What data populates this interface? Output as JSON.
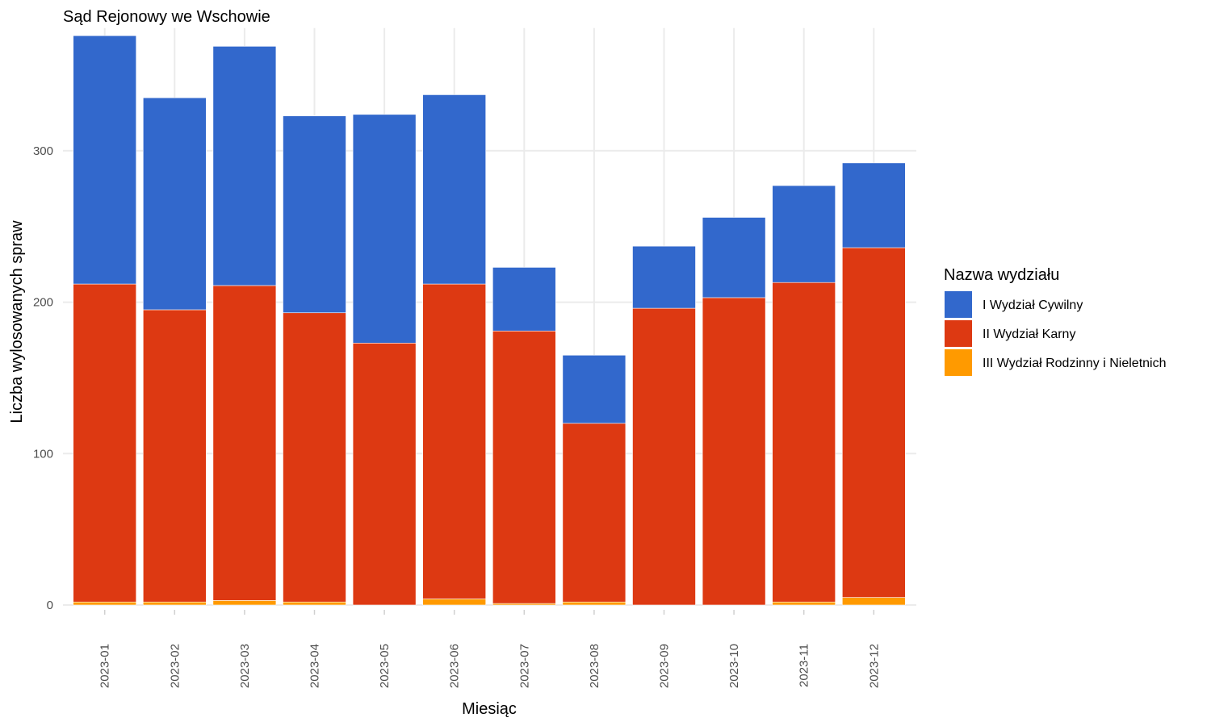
{
  "chart_data": {
    "type": "bar",
    "stacked": true,
    "title": "Sąd Rejonowy we Wschowie",
    "xlabel": "Miesiąc",
    "ylabel": "Liczba wylosowanych spraw",
    "ylim": [
      0,
      380
    ],
    "yticks": [
      0,
      100,
      200,
      300
    ],
    "grid": true,
    "legend_position": "right",
    "legend_title": "Nazwa wydziału",
    "categories": [
      "2023-01",
      "2023-02",
      "2023-03",
      "2023-04",
      "2023-05",
      "2023-06",
      "2023-07",
      "2023-08",
      "2023-09",
      "2023-10",
      "2023-11",
      "2023-12"
    ],
    "series": [
      {
        "name": "III Wydział Rodzinny i Nieletnich",
        "color": "#ff9a00",
        "values": [
          2,
          2,
          3,
          2,
          0,
          4,
          1,
          2,
          0,
          0,
          2,
          5
        ]
      },
      {
        "name": "II Wydział Karny",
        "color": "#dd3912",
        "values": [
          210,
          193,
          208,
          191,
          173,
          208,
          180,
          118,
          196,
          203,
          211,
          231
        ]
      },
      {
        "name": "I Wydział Cywilny",
        "color": "#3268cc",
        "values": [
          164,
          140,
          158,
          130,
          151,
          125,
          42,
          45,
          41,
          53,
          64,
          56
        ]
      }
    ]
  }
}
